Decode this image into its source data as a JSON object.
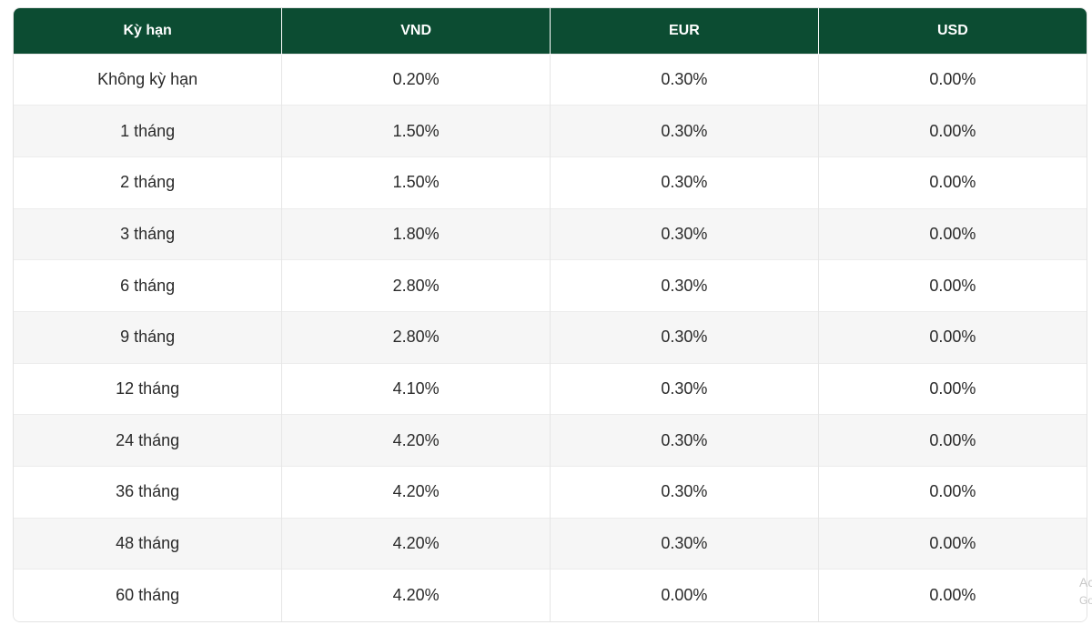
{
  "table": {
    "headers": [
      "Kỳ hạn",
      "VND",
      "EUR",
      "USD"
    ],
    "rows": [
      [
        "Không kỳ hạn",
        "0.20%",
        "0.30%",
        "0.00%"
      ],
      [
        "1 tháng",
        "1.50%",
        "0.30%",
        "0.00%"
      ],
      [
        "2 tháng",
        "1.50%",
        "0.30%",
        "0.00%"
      ],
      [
        "3 tháng",
        "1.80%",
        "0.30%",
        "0.00%"
      ],
      [
        "6 tháng",
        "2.80%",
        "0.30%",
        "0.00%"
      ],
      [
        "9 tháng",
        "2.80%",
        "0.30%",
        "0.00%"
      ],
      [
        "12 tháng",
        "4.10%",
        "0.30%",
        "0.00%"
      ],
      [
        "24 tháng",
        "4.20%",
        "0.30%",
        "0.00%"
      ],
      [
        "36 tháng",
        "4.20%",
        "0.30%",
        "0.00%"
      ],
      [
        "48 tháng",
        "4.20%",
        "0.30%",
        "0.00%"
      ],
      [
        "60 tháng",
        "4.20%",
        "0.00%",
        "0.00%"
      ]
    ]
  },
  "colors": {
    "header_bg": "#0c4c32",
    "header_text": "#ffffff",
    "row_alt": "#f6f6f6"
  },
  "watermark": {
    "line1": "Ac",
    "line2": "Go"
  }
}
